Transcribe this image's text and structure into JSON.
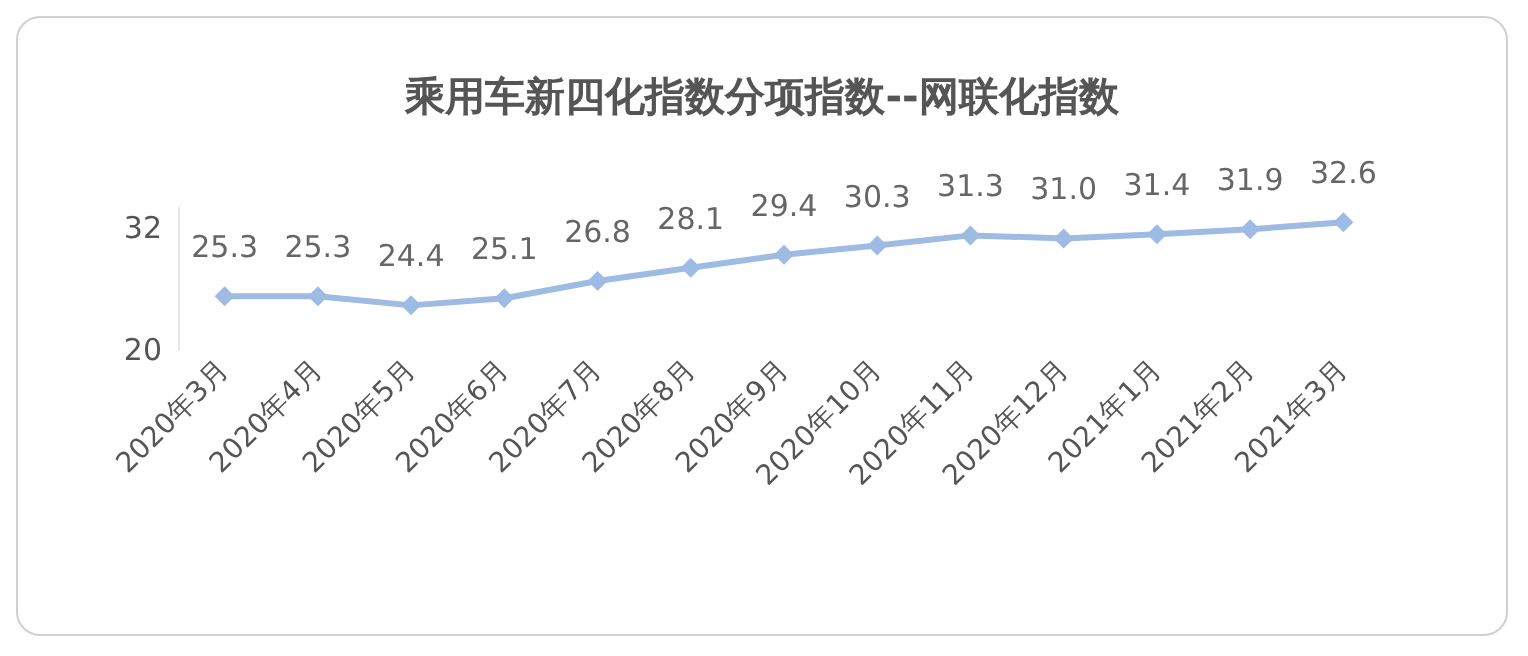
{
  "chart_data": {
    "type": "line",
    "title": "乘用车新四化指数分项指数--网联化指数",
    "categories": [
      "2020年3月",
      "2020年4月",
      "2020年5月",
      "2020年6月",
      "2020年7月",
      "2020年8月",
      "2020年9月",
      "2020年10月",
      "2020年11月",
      "2020年12月",
      "2021年1月",
      "2021年2月",
      "2021年3月"
    ],
    "series": [
      {
        "color": "#9dbbe3",
        "values": [
          25.3,
          25.3,
          24.4,
          25.1,
          26.8,
          28.1,
          29.4,
          30.3,
          31.3,
          31.0,
          31.4,
          31.9,
          32.6
        ],
        "value_labels": [
          "25.3",
          "25.3",
          "24.4",
          "25.1",
          "26.8",
          "28.1",
          "29.4",
          "30.3",
          "31.3",
          "31.0",
          "31.4",
          "31.9",
          "32.6"
        ]
      }
    ],
    "ylim": [
      20,
      34
    ],
    "yticks": [
      20,
      32
    ],
    "grid": false,
    "marker": "diamond",
    "line_style": "solid"
  }
}
